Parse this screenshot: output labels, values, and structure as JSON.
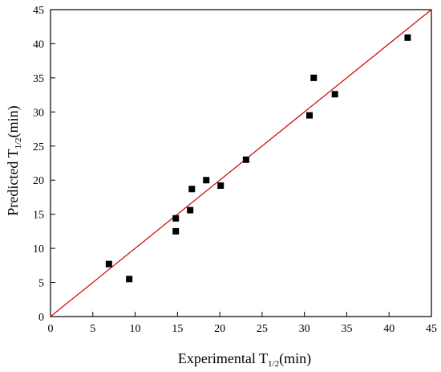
{
  "chart_data": {
    "type": "scatter",
    "xlabel": {
      "main": "Experimental  T",
      "sub": "1/2",
      "tail": "(min)"
    },
    "ylabel": {
      "main": "Predicted  T",
      "sub": "1/2",
      "tail": "(min)"
    },
    "xlim": [
      0,
      45
    ],
    "ylim": [
      0,
      45
    ],
    "xticks": [
      0,
      5,
      10,
      15,
      20,
      25,
      30,
      35,
      40,
      45
    ],
    "yticks": [
      0,
      5,
      10,
      15,
      20,
      25,
      30,
      35,
      40,
      45
    ],
    "grid": false,
    "marker": "square",
    "marker_color": "#000000",
    "reference_line": {
      "from": [
        0,
        0
      ],
      "to": [
        45,
        45
      ],
      "color": "#cc0000"
    },
    "points": [
      {
        "x": 6.9,
        "y": 7.7
      },
      {
        "x": 9.3,
        "y": 5.5
      },
      {
        "x": 14.8,
        "y": 14.4
      },
      {
        "x": 14.8,
        "y": 12.5
      },
      {
        "x": 16.5,
        "y": 15.6
      },
      {
        "x": 16.7,
        "y": 18.7
      },
      {
        "x": 18.4,
        "y": 20.0
      },
      {
        "x": 20.1,
        "y": 19.2
      },
      {
        "x": 23.1,
        "y": 23.0
      },
      {
        "x": 30.6,
        "y": 29.5
      },
      {
        "x": 31.1,
        "y": 35.0
      },
      {
        "x": 33.6,
        "y": 32.6
      },
      {
        "x": 42.2,
        "y": 40.9
      }
    ]
  }
}
